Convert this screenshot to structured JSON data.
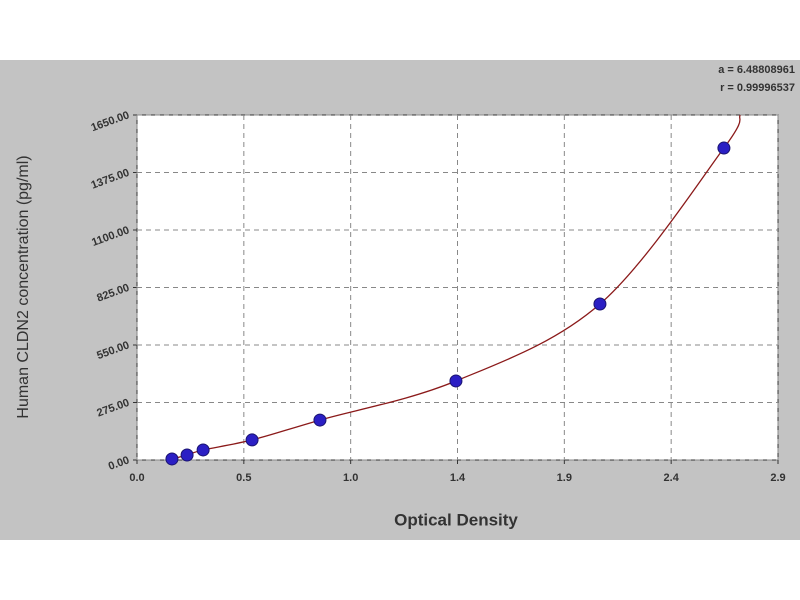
{
  "chart_data": {
    "type": "scatter",
    "x_label": "Optical Density",
    "y_label": "Human CLDN2 concentration (pg/ml)",
    "annotations": [
      "a = 6.48808961",
      "r = 0.99996537"
    ],
    "series": [
      {
        "color": "#2b1fc4",
        "x": [
          0.157,
          0.225,
          0.297,
          0.517,
          0.822,
          1.433,
          2.08,
          2.637
        ],
        "values": [
          5,
          24,
          48,
          96,
          191,
          378,
          746,
          1492
        ]
      }
    ],
    "fit": {
      "color": "#8b1a1a",
      "x": [
        0.157,
        0.225,
        0.297,
        0.517,
        0.822,
        1.433,
        2.08,
        2.637,
        2.71
      ],
      "values": [
        5,
        24,
        48,
        96,
        191,
        378,
        746,
        1492,
        1650
      ]
    },
    "xlim": [
      0,
      2.88
    ],
    "xticks": [
      {
        "value": 0,
        "label": "0.0"
      },
      {
        "value": 0.48,
        "label": "0.5"
      },
      {
        "value": 0.96,
        "label": "1.0"
      },
      {
        "value": 1.44,
        "label": "1.4"
      },
      {
        "value": 1.92,
        "label": "1.9"
      },
      {
        "value": 2.4,
        "label": "2.4"
      },
      {
        "value": 2.88,
        "label": "2.9"
      }
    ],
    "ylim": [
      0,
      1650
    ],
    "yticks": [
      {
        "value": 0,
        "label": "0.00"
      },
      {
        "value": 275,
        "label": "275.00"
      },
      {
        "value": 550,
        "label": "550.00"
      },
      {
        "value": 825,
        "label": "825.00"
      },
      {
        "value": 1100,
        "label": "1100.00"
      },
      {
        "value": 1375,
        "label": "1375.00"
      },
      {
        "value": 1650,
        "label": "1650.00"
      }
    ],
    "grid": true
  }
}
